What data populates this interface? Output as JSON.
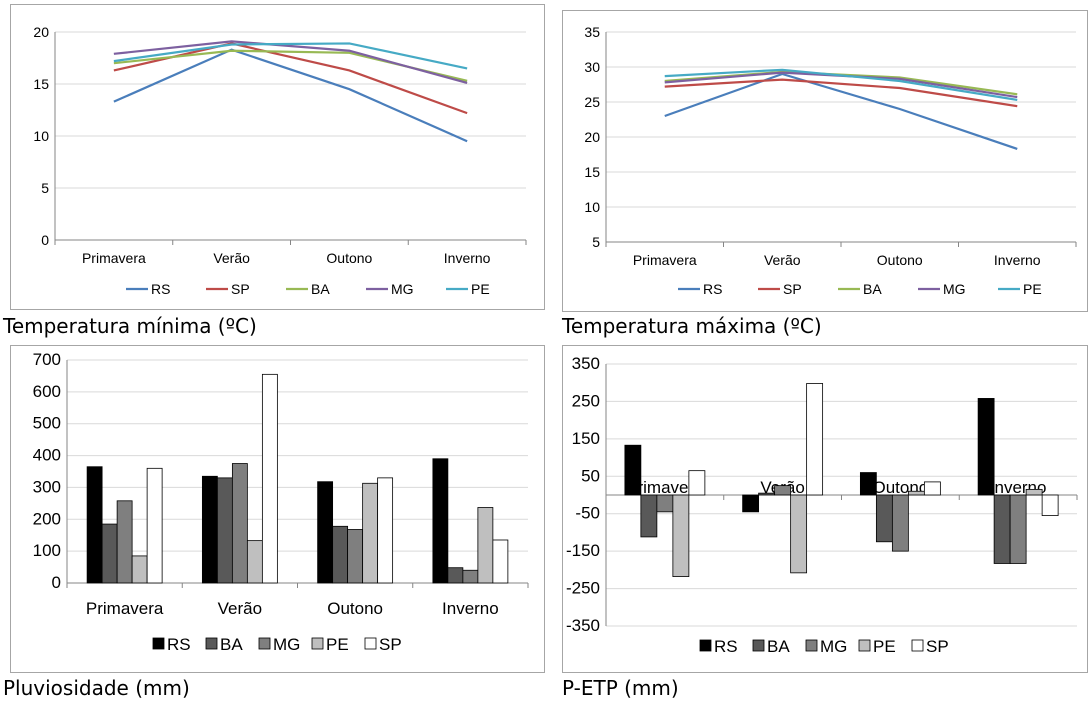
{
  "captions": {
    "min_temp": "Temperatura mínima (ºC)",
    "max_temp": "Temperatura máxima (ºC)",
    "rain": "Pluviosidade (mm)",
    "petp": "P-ETP (mm)"
  },
  "colors": {
    "RS_line": "#4a7ebb",
    "SP_line": "#be4b48",
    "BA_line": "#98b954",
    "MG_line": "#7d60a0",
    "PE_line": "#46aac5",
    "RS_bar": "#000000",
    "BA_bar": "#595959",
    "MG_bar": "#7f7f7f",
    "PE_bar": "#bfbfbf",
    "SP_bar": "#ffffff"
  },
  "chart_data": [
    {
      "id": "min_temp",
      "type": "line",
      "categories": [
        "Primavera",
        "Verão",
        "Outono",
        "Inverno"
      ],
      "ylim": [
        0,
        20
      ],
      "yticks": [
        "0",
        "5",
        "10",
        "15",
        "20"
      ],
      "grid": true,
      "legend": "bottom",
      "series": [
        {
          "name": "RS",
          "values": [
            13.3,
            18.3,
            14.5,
            9.5
          ]
        },
        {
          "name": "SP",
          "values": [
            16.3,
            18.9,
            16.3,
            12.2
          ]
        },
        {
          "name": "BA",
          "values": [
            17.0,
            18.2,
            18.0,
            15.3
          ]
        },
        {
          "name": "MG",
          "values": [
            17.9,
            19.1,
            18.2,
            15.1
          ]
        },
        {
          "name": "PE",
          "values": [
            17.2,
            18.8,
            18.9,
            16.5
          ]
        }
      ]
    },
    {
      "id": "max_temp",
      "type": "line",
      "categories": [
        "Primavera",
        "Verão",
        "Outono",
        "Inverno"
      ],
      "ylim": [
        5,
        35
      ],
      "yticks": [
        "5",
        "10",
        "15",
        "20",
        "25",
        "30",
        "35"
      ],
      "grid": true,
      "legend": "bottom",
      "series": [
        {
          "name": "RS",
          "values": [
            23.0,
            29.0,
            24.0,
            18.3
          ]
        },
        {
          "name": "SP",
          "values": [
            27.2,
            28.2,
            27.0,
            24.4
          ]
        },
        {
          "name": "BA",
          "values": [
            28.0,
            29.3,
            28.5,
            26.1
          ]
        },
        {
          "name": "MG",
          "values": [
            27.8,
            29.2,
            28.3,
            25.7
          ]
        },
        {
          "name": "PE",
          "values": [
            28.7,
            29.6,
            28.0,
            25.3
          ]
        }
      ]
    },
    {
      "id": "rain",
      "type": "bar",
      "categories": [
        "Primavera",
        "Verão",
        "Outono",
        "Inverno"
      ],
      "ylim": [
        0,
        700
      ],
      "yticks": [
        "0",
        "100",
        "200",
        "300",
        "400",
        "500",
        "600",
        "700"
      ],
      "grid": true,
      "legend": "bottom",
      "series": [
        {
          "name": "RS",
          "values": [
            365,
            335,
            318,
            390
          ]
        },
        {
          "name": "BA",
          "values": [
            185,
            330,
            178,
            48
          ]
        },
        {
          "name": "MG",
          "values": [
            258,
            375,
            168,
            40
          ]
        },
        {
          "name": "PE",
          "values": [
            85,
            133,
            313,
            237
          ]
        },
        {
          "name": "SP",
          "values": [
            360,
            655,
            330,
            135
          ]
        }
      ]
    },
    {
      "id": "petp",
      "type": "bar",
      "categories": [
        "Primavera",
        "Verão",
        "Outono",
        "Inverno"
      ],
      "ylim": [
        -350,
        350
      ],
      "yticks": [
        "-350",
        "-250",
        "-150",
        "-50",
        "50",
        "150",
        "250",
        "350"
      ],
      "grid": true,
      "legend": "bottom",
      "series": [
        {
          "name": "RS",
          "values": [
            133,
            -45,
            60,
            258
          ]
        },
        {
          "name": "BA",
          "values": [
            -112,
            5,
            -125,
            -183
          ]
        },
        {
          "name": "MG",
          "values": [
            -45,
            25,
            -150,
            -183
          ]
        },
        {
          "name": "PE",
          "values": [
            -218,
            -208,
            10,
            15
          ]
        },
        {
          "name": "SP",
          "values": [
            65,
            298,
            35,
            -55
          ]
        }
      ]
    }
  ]
}
